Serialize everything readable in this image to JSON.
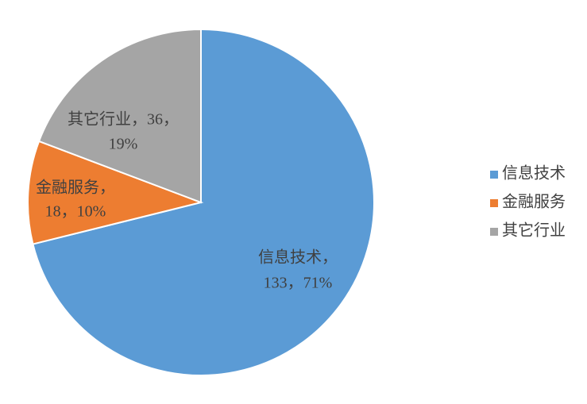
{
  "chart_data": {
    "type": "pie",
    "categories": [
      "信息技术",
      "金融服务",
      "其它行业"
    ],
    "values": [
      133,
      18,
      36
    ],
    "value_labels": [
      [
        "信息技术，",
        "133，71%"
      ],
      [
        "金融服务，",
        "18，10%"
      ],
      [
        "其它行业，36，",
        "19%"
      ]
    ],
    "colors": [
      "#5b9bd5",
      "#ed7d31",
      "#a5a5a5"
    ],
    "legend": "right"
  }
}
